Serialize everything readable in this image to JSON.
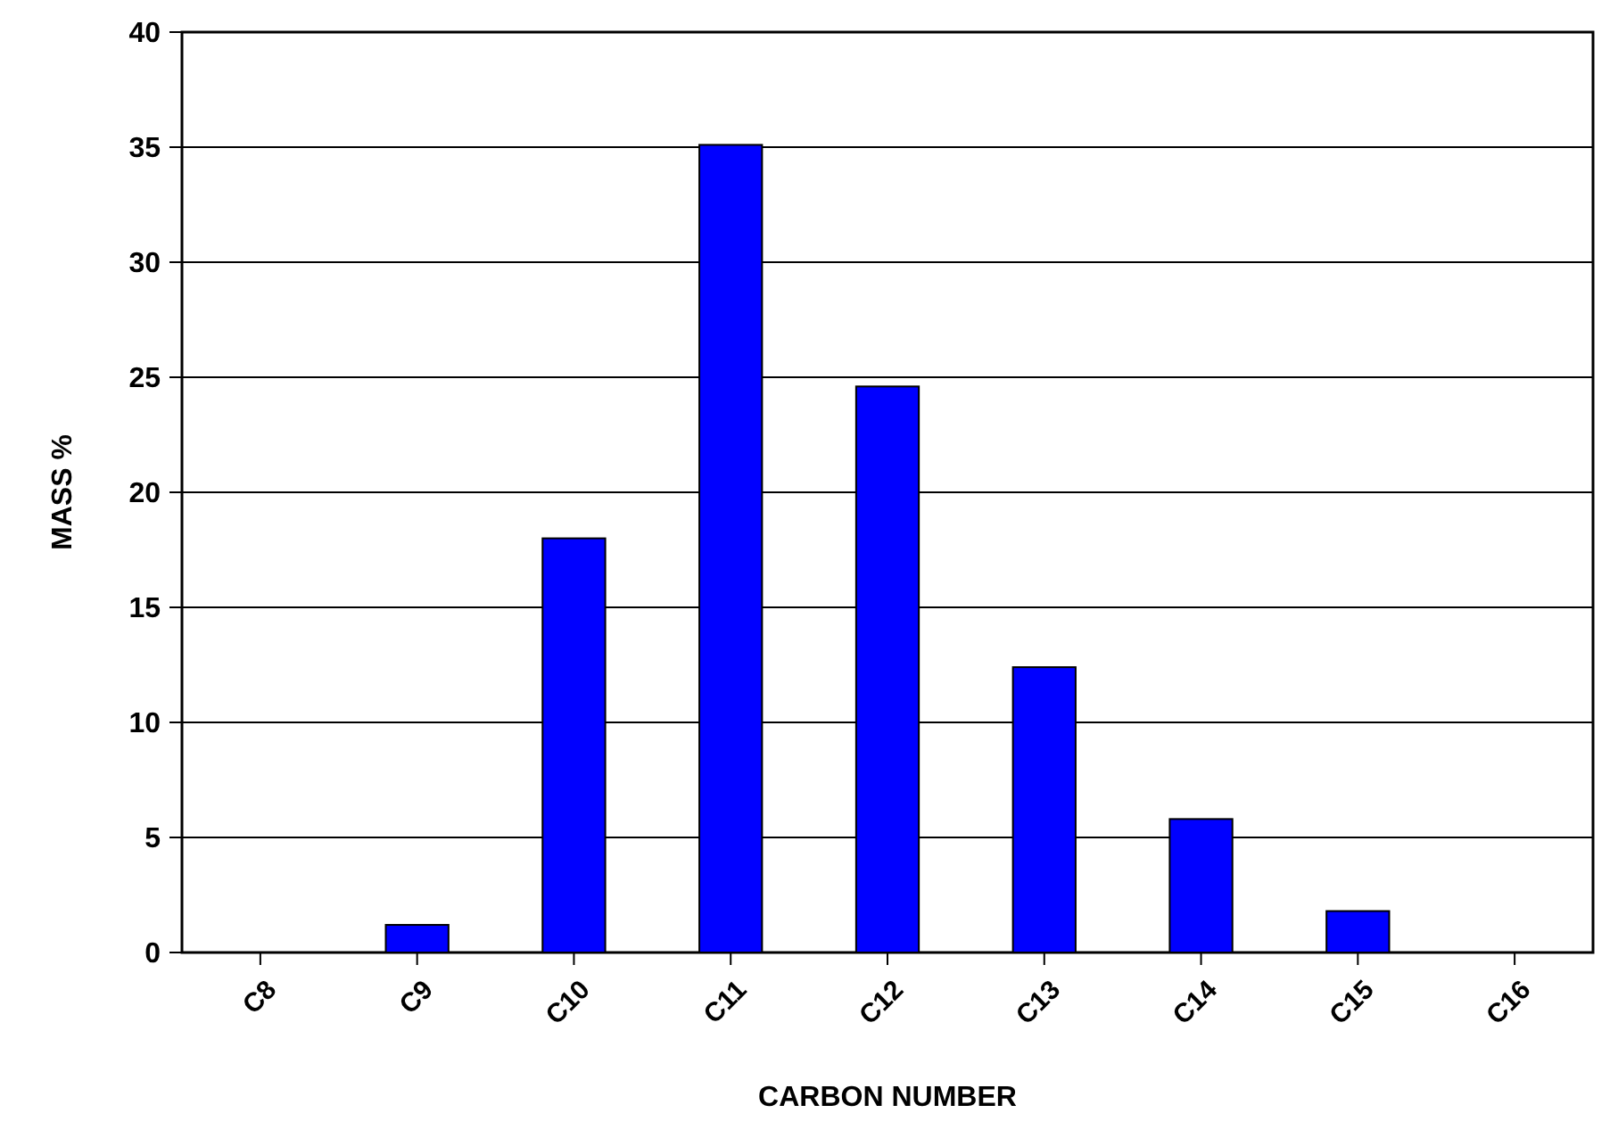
{
  "chart_data": {
    "type": "bar",
    "xlabel": "CARBON NUMBER",
    "ylabel": "MASS %",
    "categories": [
      "C8",
      "C9",
      "C10",
      "C11",
      "C12",
      "C13",
      "C14",
      "C15",
      "C16"
    ],
    "values": [
      0,
      1.2,
      18,
      35.1,
      24.6,
      12.4,
      5.8,
      1.8,
      0
    ],
    "color": "#0000ff",
    "ylim": [
      0,
      40
    ],
    "yticks": [
      0,
      5,
      10,
      15,
      20,
      25,
      30,
      35,
      40
    ],
    "grid": "y"
  }
}
